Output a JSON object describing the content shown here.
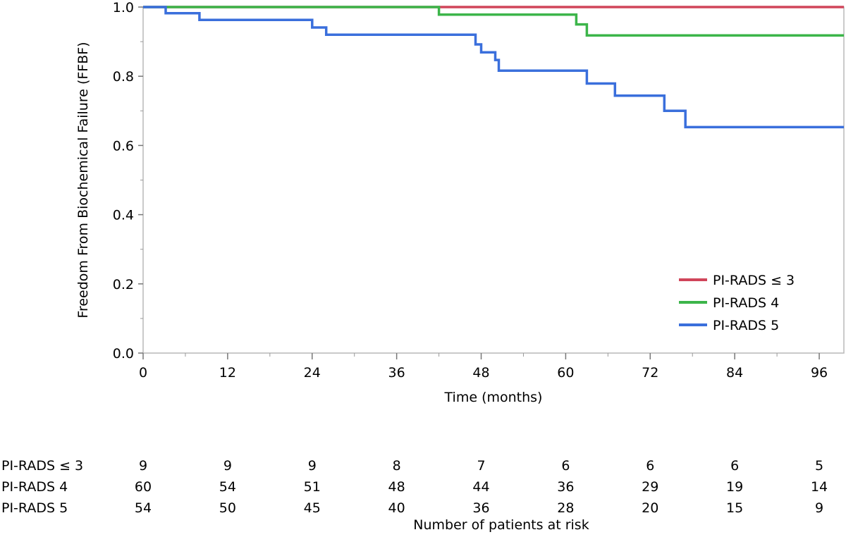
{
  "chart_data": {
    "type": "line",
    "subtype": "kaplan-meier-step",
    "title": "",
    "xlabel": "Time (months)",
    "ylabel": "Freedom From Biochemical Failure (FFBF)",
    "xlim": [
      0,
      99.5
    ],
    "ylim": [
      0,
      1.0
    ],
    "xticks": [
      0,
      12,
      24,
      36,
      48,
      60,
      72,
      84,
      96
    ],
    "xtick_labels": [
      "0",
      "12",
      "24",
      "36",
      "48",
      "60",
      "72",
      "84",
      "96"
    ],
    "yticks": [
      0,
      0.2,
      0.4,
      0.6,
      0.8,
      1.0
    ],
    "ytick_labels": [
      "0.0",
      "0.2",
      "0.4",
      "0.6",
      "0.8",
      "1.0"
    ],
    "grid": false,
    "legend_position": "bottom-right",
    "series": [
      {
        "name": "PI-RADS ≤ 3",
        "color": "#d0455a",
        "points": [
          [
            0,
            1.0
          ],
          [
            99.5,
            1.0
          ]
        ]
      },
      {
        "name": "PI-RADS 4",
        "color": "#3cb54a",
        "points": [
          [
            0,
            1.0
          ],
          [
            42,
            1.0
          ],
          [
            42,
            0.978
          ],
          [
            61.5,
            0.978
          ],
          [
            61.5,
            0.95
          ],
          [
            63,
            0.95
          ],
          [
            63,
            0.918
          ],
          [
            99.5,
            0.918
          ]
        ]
      },
      {
        "name": "PI-RADS 5",
        "color": "#3a6fdc",
        "points": [
          [
            0,
            1.0
          ],
          [
            3.2,
            1.0
          ],
          [
            3.2,
            0.982
          ],
          [
            8,
            0.982
          ],
          [
            8,
            0.963
          ],
          [
            24,
            0.963
          ],
          [
            24,
            0.941
          ],
          [
            26,
            0.941
          ],
          [
            26,
            0.92
          ],
          [
            47.2,
            0.92
          ],
          [
            47.2,
            0.892
          ],
          [
            48,
            0.892
          ],
          [
            48,
            0.869
          ],
          [
            50,
            0.869
          ],
          [
            50,
            0.847
          ],
          [
            50.5,
            0.847
          ],
          [
            50.5,
            0.816
          ],
          [
            63,
            0.816
          ],
          [
            63,
            0.779
          ],
          [
            67,
            0.779
          ],
          [
            67,
            0.744
          ],
          [
            74,
            0.744
          ],
          [
            74,
            0.7
          ],
          [
            77,
            0.7
          ],
          [
            77,
            0.653
          ],
          [
            99.5,
            0.653
          ]
        ]
      }
    ]
  },
  "risk_table": {
    "title": "Number of patients at risk",
    "rows": [
      {
        "label": "PI-RADS ≤ 3",
        "values": [
          "9",
          "9",
          "9",
          "8",
          "7",
          "6",
          "6",
          "6",
          "5"
        ]
      },
      {
        "label": "PI-RADS 4",
        "values": [
          "60",
          "54",
          "51",
          "48",
          "44",
          "36",
          "29",
          "19",
          "14"
        ]
      },
      {
        "label": "PI-RADS 5",
        "values": [
          "54",
          "50",
          "45",
          "40",
          "36",
          "28",
          "20",
          "15",
          "9"
        ]
      }
    ]
  }
}
